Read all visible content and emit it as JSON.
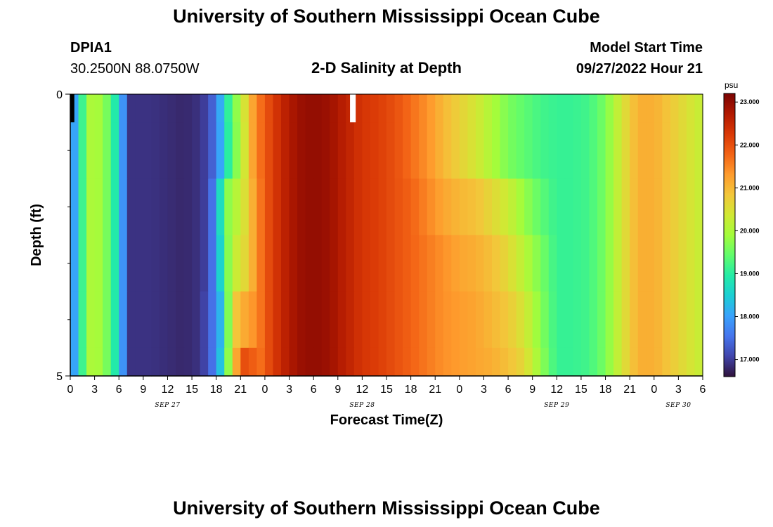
{
  "header": {
    "title": "University of Southern Mississippi Ocean Cube",
    "station_id": "DPIA1",
    "coordinates": "30.2500N  88.0750W",
    "subtitle": "2-D Salinity at Depth",
    "model_start_label": "Model Start Time",
    "model_start_value": "09/27/2022 Hour 21"
  },
  "footer": {
    "title": "University of Southern Mississippi Ocean Cube"
  },
  "chart_data": {
    "type": "heatmap",
    "title": "2-D Salinity at Depth",
    "xlabel": "Forecast Time(Z)",
    "ylabel": "Depth (ft)",
    "colorbar_units": "psu",
    "colorbar_ticks": [
      "17.000",
      "18.000",
      "19.000",
      "20.000",
      "21.000",
      "22.000",
      "23.000"
    ],
    "colorbar_range": [
      16.6,
      23.2
    ],
    "colormap": [
      "#30123b",
      "#4145ab",
      "#4675ed",
      "#39a2fc",
      "#1bcfd4",
      "#24eca6",
      "#61fc6c",
      "#a4fc3b",
      "#d1e834",
      "#f3c63a",
      "#fe9b2d",
      "#f36315",
      "#d93806",
      "#b11901",
      "#7a0403"
    ],
    "x_tick_labels": [
      "0",
      "3",
      "6",
      "9",
      "12",
      "15",
      "18",
      "21",
      "0",
      "3",
      "6",
      "9",
      "12",
      "15",
      "18",
      "21",
      "0",
      "3",
      "6",
      "9",
      "12",
      "15",
      "18",
      "21",
      "0",
      "3",
      "6"
    ],
    "date_labels": [
      {
        "label": "SEP 27",
        "hour": 12
      },
      {
        "label": "SEP 28",
        "hour": 36
      },
      {
        "label": "SEP 29",
        "hour": 60
      },
      {
        "label": "SEP 30",
        "hour": 75
      }
    ],
    "x_range_hours": [
      0,
      78
    ],
    "y_tick_labels": [
      "0",
      "5"
    ],
    "ylim": [
      5,
      0
    ],
    "depth_levels_ft": [
      0,
      0.5,
      1.5,
      2.5,
      3.5,
      4.5,
      5
    ],
    "missing_cells": [
      {
        "hour_start": 0,
        "hour_end": 0.5,
        "depth_start": 0,
        "depth_end": 0.5,
        "color": "#000000"
      },
      {
        "hour_start": 34.5,
        "hour_end": 35.2,
        "depth_start": 0,
        "depth_end": 0.5,
        "color": "#ffffff"
      }
    ],
    "profiles": {
      "hours": [
        0,
        1,
        2,
        4,
        6,
        7,
        7.5,
        10,
        14,
        16,
        17,
        18,
        19,
        20,
        21,
        22,
        23,
        24,
        26,
        28,
        30,
        32,
        34,
        36,
        38,
        40,
        42,
        44,
        46,
        48,
        50,
        52,
        54,
        56,
        58,
        60,
        62,
        64,
        66,
        68,
        70,
        72,
        74,
        76,
        78
      ],
      "depth_0": [
        17.8,
        18.3,
        20.0,
        19.9,
        18.6,
        17.1,
        16.9,
        16.9,
        16.8,
        16.9,
        17.1,
        17.6,
        18.6,
        19.5,
        20.0,
        20.9,
        21.5,
        21.9,
        22.5,
        22.9,
        23.0,
        22.9,
        22.6,
        22.3,
        22.2,
        22.0,
        21.7,
        21.4,
        21.0,
        20.7,
        20.4,
        20.0,
        19.6,
        19.4,
        19.2,
        19.1,
        19.1,
        19.2,
        19.6,
        20.4,
        21.1,
        21.1,
        20.8,
        20.5,
        20.2
      ],
      "depth_1": [
        17.8,
        18.3,
        20.0,
        19.9,
        18.6,
        17.1,
        16.9,
        16.9,
        16.8,
        16.9,
        17.1,
        17.6,
        18.5,
        19.5,
        19.9,
        20.9,
        21.5,
        21.9,
        22.5,
        22.9,
        23.0,
        22.9,
        22.6,
        22.3,
        22.2,
        22.0,
        21.7,
        21.4,
        21.0,
        20.7,
        20.4,
        20.0,
        19.6,
        19.4,
        19.2,
        19.1,
        19.1,
        19.2,
        19.6,
        20.4,
        21.1,
        21.1,
        20.8,
        20.5,
        20.2
      ],
      "depth_2": [
        17.8,
        18.3,
        20.0,
        19.9,
        18.6,
        17.1,
        16.9,
        16.9,
        16.8,
        16.9,
        17.1,
        17.9,
        19.5,
        20.0,
        20.2,
        20.8,
        21.4,
        21.9,
        22.5,
        22.9,
        23.0,
        22.9,
        22.6,
        22.3,
        22.2,
        22.0,
        21.8,
        21.5,
        21.2,
        21.0,
        20.9,
        20.6,
        20.3,
        19.8,
        19.4,
        19.1,
        19.1,
        19.2,
        19.6,
        20.4,
        21.1,
        21.1,
        20.8,
        20.5,
        20.2
      ],
      "depth_3": [
        17.8,
        18.3,
        20.0,
        19.9,
        18.6,
        17.1,
        16.9,
        16.9,
        16.8,
        16.9,
        17.1,
        17.9,
        19.2,
        20.2,
        20.4,
        20.8,
        21.4,
        21.9,
        22.5,
        22.9,
        23.0,
        22.9,
        22.6,
        22.3,
        22.2,
        22.0,
        21.8,
        21.6,
        21.4,
        21.2,
        21.1,
        20.9,
        20.6,
        20.1,
        19.6,
        19.1,
        19.1,
        19.2,
        19.6,
        20.4,
        21.1,
        21.1,
        20.8,
        20.5,
        20.2
      ],
      "depth_4": [
        17.8,
        18.3,
        20.0,
        19.9,
        18.6,
        17.1,
        16.9,
        16.9,
        16.8,
        16.9,
        17.2,
        17.8,
        18.6,
        20.7,
        21.0,
        21.3,
        21.4,
        21.9,
        22.5,
        22.9,
        23.0,
        22.9,
        22.6,
        22.3,
        22.2,
        22.0,
        21.8,
        21.6,
        21.4,
        21.3,
        21.2,
        21.0,
        20.8,
        20.4,
        19.7,
        19.1,
        19.1,
        19.2,
        19.6,
        20.4,
        21.1,
        21.1,
        20.8,
        20.5,
        20.2
      ],
      "depth_5": [
        17.8,
        18.3,
        20.0,
        19.9,
        18.6,
        17.1,
        16.9,
        16.9,
        16.8,
        16.9,
        17.2,
        17.8,
        18.9,
        20.6,
        21.8,
        22.2,
        21.5,
        21.9,
        22.5,
        22.9,
        23.0,
        22.9,
        22.6,
        22.3,
        22.2,
        22.0,
        21.8,
        21.6,
        21.4,
        21.3,
        21.2,
        21.1,
        20.9,
        20.6,
        19.8,
        19.1,
        19.1,
        19.2,
        19.6,
        20.4,
        21.1,
        21.1,
        20.8,
        20.5,
        20.2
      ]
    }
  }
}
